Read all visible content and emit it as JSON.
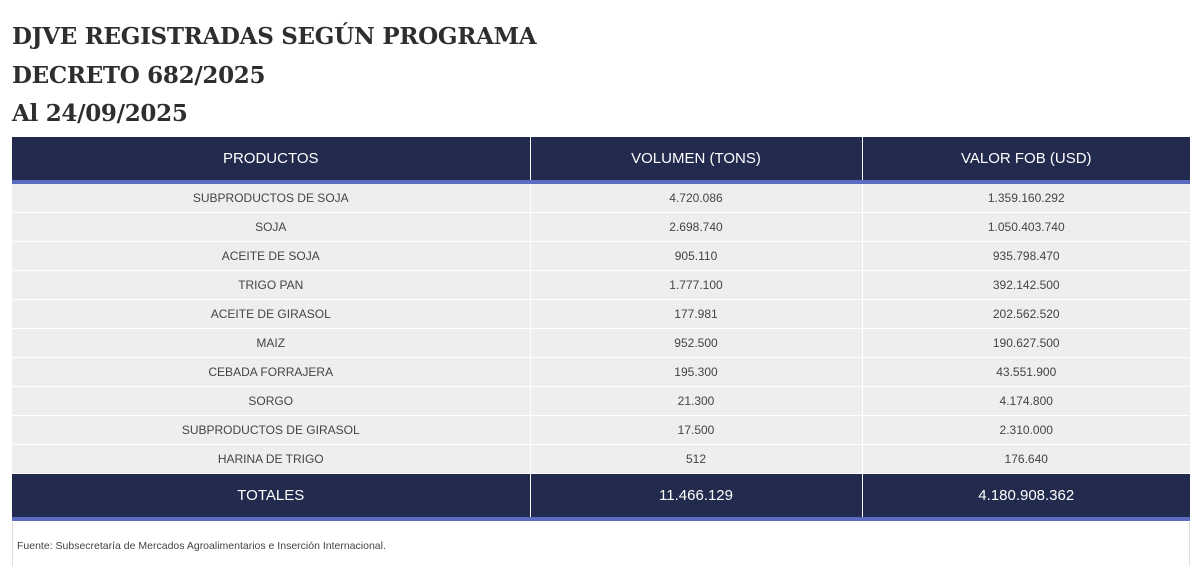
{
  "header": {
    "lines": [
      "DJVE REGISTRADAS SEGÚN PROGRAMA",
      "DECRETO 682/2025",
      "Al 24/09/2025"
    ]
  },
  "table": {
    "columns": [
      "PRODUCTOS",
      "VOLUMEN (TONS)",
      "VALOR FOB (USD)"
    ],
    "rows": [
      [
        "SUBPRODUCTOS DE SOJA",
        "4.720.086",
        "1.359.160.292"
      ],
      [
        "SOJA",
        "2.698.740",
        "1.050.403.740"
      ],
      [
        "ACEITE DE SOJA",
        "905.110",
        "935.798.470"
      ],
      [
        "TRIGO PAN",
        "1.777.100",
        "392.142.500"
      ],
      [
        "ACEITE DE GIRASOL",
        "177.981",
        "202.562.520"
      ],
      [
        "MAIZ",
        "952.500",
        "190.627.500"
      ],
      [
        "CEBADA FORRAJERA",
        "195.300",
        "43.551.900"
      ],
      [
        "SORGO",
        "21.300",
        "4.174.800"
      ],
      [
        "SUBPRODUCTOS DE GIRASOL",
        "17.500",
        "2.310.000"
      ],
      [
        "HARINA DE TRIGO",
        "512",
        "176.640"
      ]
    ],
    "totals": [
      "TOTALES",
      "11.466.129",
      "4.180.908.362"
    ]
  },
  "footer": {
    "source": "Fuente: Subsecretaría de Mercados Agroalimentarios e Inserción Internacional."
  }
}
